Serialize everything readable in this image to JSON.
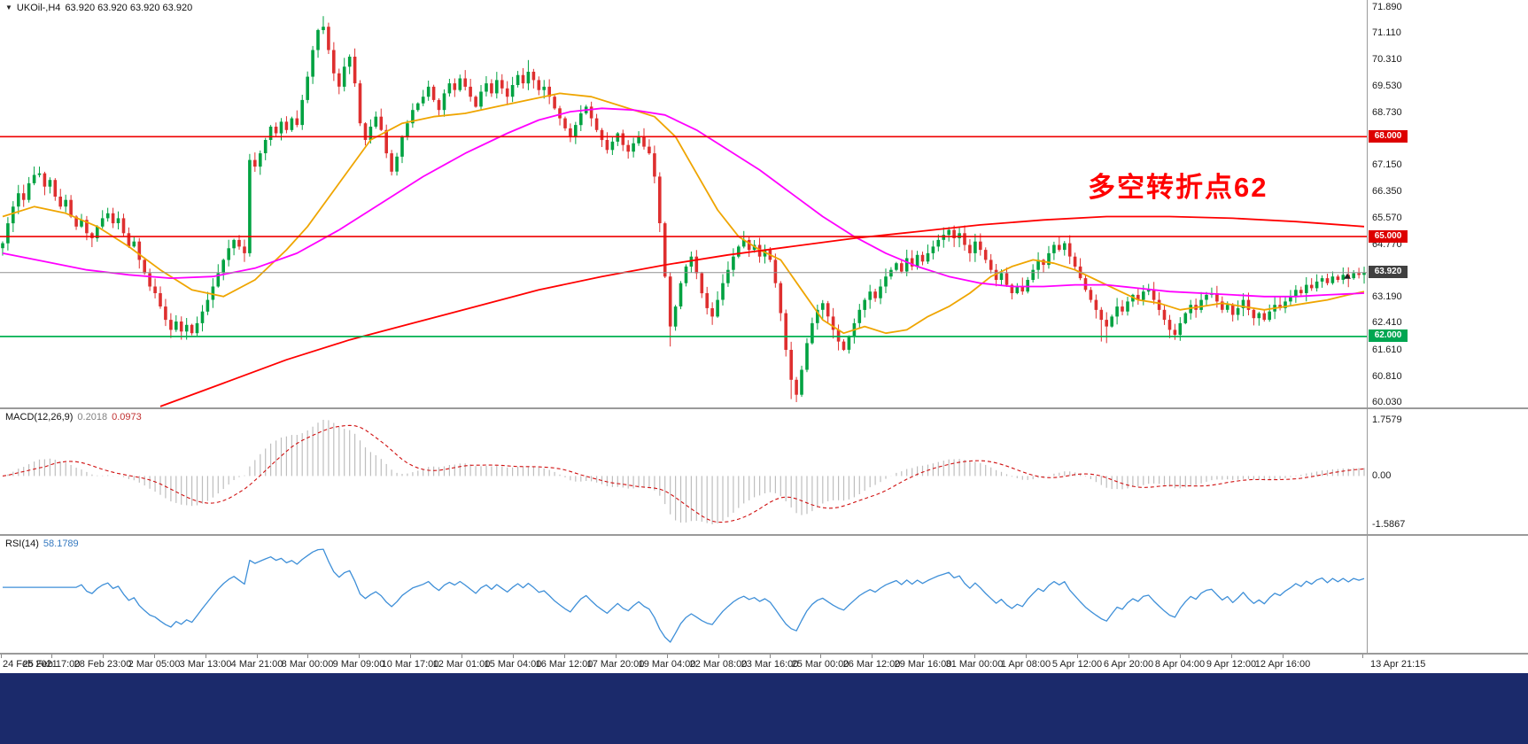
{
  "header": {
    "symbol_timeframe": "UKOil-,H4",
    "ohlc_values": "63.920 63.920 63.920 63.920"
  },
  "icons": {
    "dropdown": "▼"
  },
  "annotation": {
    "text": "多空转折点62",
    "color": "#FF0000"
  },
  "macd": {
    "title": "MACD(12,26,9)",
    "main_value": "0.2018",
    "signal_value": "0.0973",
    "axis_max": "1.7579",
    "axis_zero": "0.00",
    "axis_min": "-1.5867"
  },
  "rsi": {
    "title": "RSI(14)",
    "value": "58.1789"
  },
  "price_axis": {
    "ticks": [
      "71.890",
      "71.110",
      "70.310",
      "69.530",
      "68.730",
      "67.930",
      "67.150",
      "66.350",
      "65.570",
      "64.770",
      "63.990",
      "63.190",
      "62.410",
      "61.610",
      "60.810",
      "60.030"
    ]
  },
  "time_axis": {
    "labels": [
      "24 Feb 2021",
      "25 Feb 17:00",
      "28 Feb 23:00",
      "2 Mar 05:00",
      "3 Mar 13:00",
      "4 Mar 21:00",
      "8 Mar 00:00",
      "9 Mar 09:00",
      "10 Mar 17:00",
      "12 Mar 01:00",
      "15 Mar 04:00",
      "16 Mar 12:00",
      "17 Mar 20:00",
      "19 Mar 04:00",
      "22 Mar 08:00",
      "23 Mar 16:00",
      "25 Mar 00:00",
      "26 Mar 12:00",
      "29 Mar 16:00",
      "31 Mar 00:00",
      "1 Apr 08:00",
      "5 Apr 12:00",
      "6 Apr 20:00",
      "8 Apr 04:00",
      "9 Apr 12:00",
      "12 Apr 16:00",
      "13 Apr 21:15"
    ]
  },
  "colors": {
    "background": "#FFFFFF",
    "candle_up": "#00A241",
    "candle_down": "#DE2F2F",
    "ma_fast": "#EFA500",
    "ma_mid": "#FF00FF",
    "ma_slow": "#FF0000",
    "current_price_line": "#909090",
    "macd_hist": "#BEBEBE",
    "macd_signal": "#D01010",
    "rsi_line": "#3E8FD8",
    "axis_text": "#1A1A1A",
    "badge_red": "#DD0000",
    "badge_green": "#00A651",
    "badge_dark": "#404040",
    "separator": "#9A9A9A",
    "footer": "#1B2A6B"
  },
  "chart_data": {
    "type": "candlestick",
    "symbol": "UKOil-",
    "timeframe": "H4",
    "current_price": 63.92,
    "price_range": [
      60.03,
      71.89
    ],
    "closes": [
      64.8,
      65.4,
      65.9,
      66.3,
      66.1,
      66.6,
      66.85,
      66.9,
      66.5,
      66.7,
      66.2,
      65.9,
      66.1,
      65.6,
      65.3,
      65.5,
      65.1,
      64.95,
      65.3,
      65.55,
      65.7,
      65.4,
      65.55,
      65.1,
      64.7,
      64.85,
      64.3,
      63.9,
      63.5,
      63.3,
      62.9,
      62.5,
      62.2,
      62.45,
      62.15,
      62.35,
      62.1,
      62.4,
      62.75,
      63.1,
      63.5,
      63.9,
      64.3,
      64.65,
      64.9,
      64.7,
      64.5,
      67.3,
      67.1,
      67.5,
      67.9,
      68.3,
      68.1,
      68.45,
      68.2,
      68.55,
      68.35,
      69.1,
      69.8,
      70.6,
      71.2,
      71.3,
      70.6,
      69.9,
      69.5,
      70.1,
      70.4,
      69.6,
      68.4,
      67.9,
      68.3,
      68.6,
      68.2,
      67.5,
      66.95,
      67.4,
      68.0,
      68.4,
      68.8,
      69.0,
      69.2,
      69.5,
      69.1,
      68.8,
      69.3,
      69.6,
      69.4,
      69.75,
      69.5,
      69.2,
      68.9,
      69.35,
      69.6,
      69.3,
      69.7,
      69.45,
      69.2,
      69.55,
      69.85,
      69.6,
      69.95,
      69.7,
      69.4,
      69.5,
      69.2,
      68.85,
      68.55,
      68.25,
      68.0,
      68.35,
      68.7,
      68.9,
      68.55,
      68.2,
      67.9,
      67.6,
      67.85,
      68.1,
      67.75,
      67.55,
      67.8,
      68.0,
      67.7,
      67.5,
      66.8,
      65.4,
      63.8,
      62.3,
      62.9,
      63.6,
      64.1,
      64.4,
      63.9,
      63.3,
      62.85,
      62.6,
      63.1,
      63.6,
      64.0,
      64.4,
      64.7,
      64.9,
      64.6,
      64.75,
      64.4,
      64.6,
      64.3,
      63.6,
      62.7,
      61.6,
      60.7,
      60.25,
      61.0,
      61.8,
      62.4,
      62.8,
      63.0,
      62.6,
      62.2,
      61.85,
      61.6,
      62.0,
      62.4,
      62.8,
      63.1,
      63.35,
      63.15,
      63.5,
      63.8,
      64.0,
      64.2,
      63.95,
      64.35,
      64.1,
      64.45,
      64.25,
      64.5,
      64.7,
      64.9,
      65.05,
      65.2,
      64.95,
      65.1,
      64.75,
      64.5,
      64.85,
      64.6,
      64.3,
      64.0,
      63.7,
      63.9,
      63.55,
      63.3,
      63.5,
      63.35,
      63.7,
      64.0,
      64.3,
      64.15,
      64.5,
      64.75,
      64.6,
      64.8,
      64.4,
      64.1,
      63.75,
      63.4,
      63.1,
      62.8,
      62.5,
      62.3,
      62.6,
      62.9,
      62.75,
      63.05,
      63.25,
      63.1,
      63.35,
      63.4,
      63.1,
      62.8,
      62.5,
      62.2,
      62.05,
      62.4,
      62.7,
      62.95,
      62.8,
      63.1,
      63.25,
      63.3,
      63.05,
      62.8,
      62.95,
      62.65,
      62.85,
      63.1,
      62.8,
      62.55,
      62.7,
      62.5,
      62.75,
      62.95,
      62.85,
      63.05,
      63.2,
      63.4,
      63.3,
      63.55,
      63.45,
      63.65,
      63.75,
      63.6,
      63.8,
      63.7,
      63.85,
      63.75,
      63.9,
      63.85,
      63.92
    ],
    "wick_overrides": {
      "7": {
        "high": 67.1
      },
      "47": {
        "low": 64.4
      },
      "61": {
        "high": 71.62
      },
      "100": {
        "high": 70.3
      },
      "127": {
        "low": 61.7
      },
      "150": {
        "low": 60.12
      },
      "151": {
        "low": 60.03
      },
      "209": {
        "low": 61.85
      },
      "210": {
        "low": 61.8
      },
      "222": {
        "low": 61.95
      },
      "223": {
        "low": 61.9
      }
    },
    "hlines": [
      {
        "price": 68.0,
        "label": "68.000",
        "color": "#EE0000",
        "badge": "#DD0000",
        "width": 1.6
      },
      {
        "price": 65.0,
        "label": "65.000",
        "color": "#EE0000",
        "badge": "#DD0000",
        "width": 1.6
      },
      {
        "price": 62.0,
        "label": "62.000",
        "color": "#00B050",
        "badge": "#00A651",
        "width": 1.8
      },
      {
        "price": 63.92,
        "label": "63.920",
        "color": "#909090",
        "badge": "#404040",
        "width": 1,
        "current": true
      }
    ],
    "ma_lines": [
      {
        "name": "fast-orange",
        "color": "#EFA500",
        "points": [
          [
            0,
            65.6
          ],
          [
            6,
            65.9
          ],
          [
            12,
            65.7
          ],
          [
            18,
            65.3
          ],
          [
            24,
            64.7
          ],
          [
            30,
            64.0
          ],
          [
            36,
            63.4
          ],
          [
            42,
            63.2
          ],
          [
            48,
            63.7
          ],
          [
            54,
            64.6
          ],
          [
            58,
            65.3
          ],
          [
            64,
            66.6
          ],
          [
            70,
            67.9
          ],
          [
            76,
            68.4
          ],
          [
            82,
            68.6
          ],
          [
            88,
            68.7
          ],
          [
            94,
            68.9
          ],
          [
            100,
            69.1
          ],
          [
            106,
            69.3
          ],
          [
            112,
            69.2
          ],
          [
            118,
            68.9
          ],
          [
            124,
            68.6
          ],
          [
            128,
            68.0
          ],
          [
            132,
            66.9
          ],
          [
            136,
            65.8
          ],
          [
            140,
            65.0
          ],
          [
            144,
            64.6
          ],
          [
            148,
            64.3
          ],
          [
            152,
            63.4
          ],
          [
            156,
            62.5
          ],
          [
            160,
            62.1
          ],
          [
            164,
            62.3
          ],
          [
            168,
            62.1
          ],
          [
            172,
            62.2
          ],
          [
            176,
            62.6
          ],
          [
            180,
            62.9
          ],
          [
            184,
            63.3
          ],
          [
            188,
            63.8
          ],
          [
            192,
            64.1
          ],
          [
            196,
            64.3
          ],
          [
            200,
            64.2
          ],
          [
            204,
            64.0
          ],
          [
            208,
            63.7
          ],
          [
            212,
            63.4
          ],
          [
            216,
            63.1
          ],
          [
            220,
            63.0
          ],
          [
            224,
            62.8
          ],
          [
            228,
            62.9
          ],
          [
            232,
            63.0
          ],
          [
            236,
            62.9
          ],
          [
            240,
            62.8
          ],
          [
            244,
            62.9
          ],
          [
            248,
            63.0
          ],
          [
            252,
            63.1
          ],
          [
            256,
            63.25
          ],
          [
            259,
            63.35
          ]
        ]
      },
      {
        "name": "mid-magenta",
        "color": "#FF00FF",
        "points": [
          [
            0,
            64.5
          ],
          [
            8,
            64.25
          ],
          [
            16,
            64.0
          ],
          [
            24,
            63.85
          ],
          [
            32,
            63.75
          ],
          [
            40,
            63.8
          ],
          [
            48,
            64.05
          ],
          [
            56,
            64.5
          ],
          [
            64,
            65.2
          ],
          [
            72,
            66.0
          ],
          [
            80,
            66.8
          ],
          [
            88,
            67.5
          ],
          [
            96,
            68.1
          ],
          [
            102,
            68.5
          ],
          [
            108,
            68.75
          ],
          [
            114,
            68.85
          ],
          [
            120,
            68.8
          ],
          [
            126,
            68.65
          ],
          [
            132,
            68.2
          ],
          [
            138,
            67.6
          ],
          [
            144,
            67.0
          ],
          [
            150,
            66.3
          ],
          [
            156,
            65.6
          ],
          [
            162,
            65.0
          ],
          [
            168,
            64.5
          ],
          [
            174,
            64.1
          ],
          [
            180,
            63.8
          ],
          [
            186,
            63.6
          ],
          [
            192,
            63.5
          ],
          [
            198,
            63.5
          ],
          [
            204,
            63.55
          ],
          [
            210,
            63.55
          ],
          [
            216,
            63.45
          ],
          [
            222,
            63.35
          ],
          [
            228,
            63.3
          ],
          [
            234,
            63.25
          ],
          [
            240,
            63.2
          ],
          [
            246,
            63.2
          ],
          [
            252,
            63.25
          ],
          [
            259,
            63.3
          ]
        ]
      },
      {
        "name": "slow-red",
        "color": "#FF0000",
        "points": [
          [
            30,
            59.9
          ],
          [
            42,
            60.6
          ],
          [
            54,
            61.3
          ],
          [
            66,
            61.9
          ],
          [
            78,
            62.4
          ],
          [
            90,
            62.9
          ],
          [
            102,
            63.4
          ],
          [
            114,
            63.8
          ],
          [
            126,
            64.15
          ],
          [
            138,
            64.45
          ],
          [
            150,
            64.7
          ],
          [
            162,
            64.95
          ],
          [
            174,
            65.15
          ],
          [
            186,
            65.35
          ],
          [
            198,
            65.5
          ],
          [
            210,
            65.6
          ],
          [
            222,
            65.6
          ],
          [
            234,
            65.55
          ],
          [
            246,
            65.45
          ],
          [
            259,
            65.3
          ]
        ]
      }
    ],
    "indicators": [
      {
        "name": "MACD",
        "params": [
          12,
          26,
          9
        ],
        "current_main": 0.2018,
        "current_signal": 0.0973,
        "display_range": [
          -1.5867,
          1.7579
        ]
      },
      {
        "name": "RSI",
        "params": [
          14
        ],
        "current": 58.1789
      }
    ]
  }
}
